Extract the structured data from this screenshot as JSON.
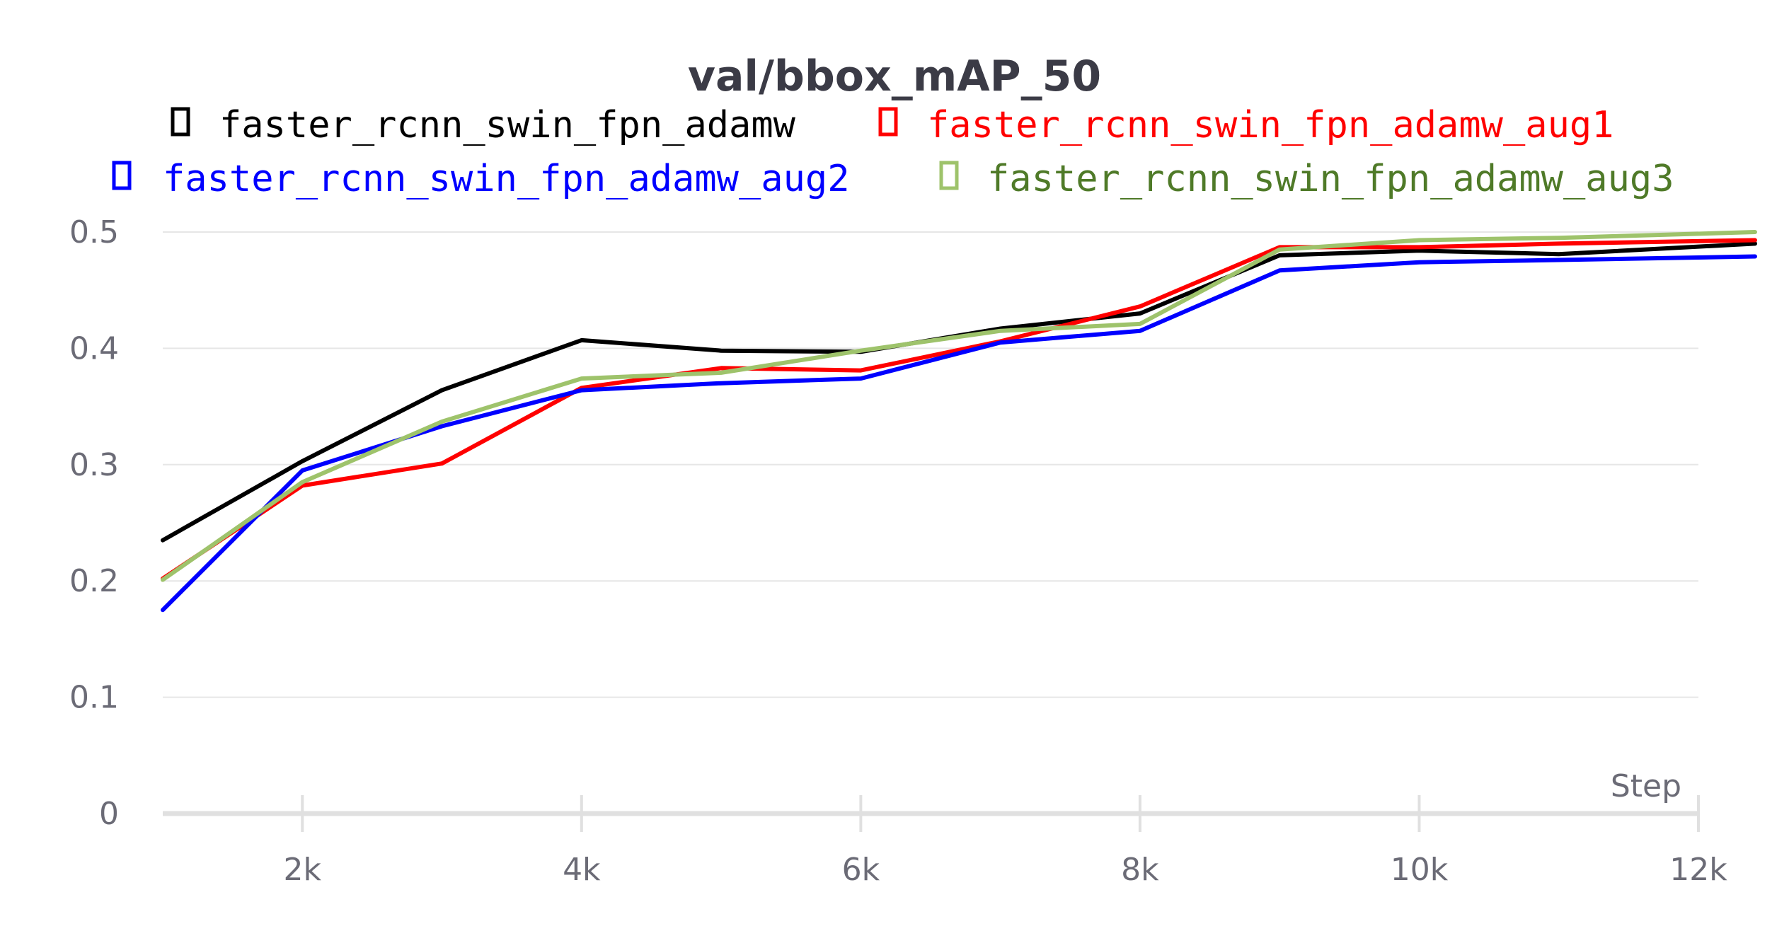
{
  "chart_data": {
    "type": "line",
    "title": "val/bbox_mAP_50",
    "xlabel": "Step",
    "ylabel": "",
    "xlim": [
      1000,
      12000
    ],
    "ylim": [
      0,
      0.5
    ],
    "grid": true,
    "legend_position": "top",
    "x_ticks": [
      2000,
      4000,
      6000,
      8000,
      10000,
      12000
    ],
    "x_tick_labels": [
      "2k",
      "4k",
      "6k",
      "8k",
      "10k",
      "12k"
    ],
    "y_ticks": [
      0,
      0.1,
      0.2,
      0.3,
      0.4,
      0.5
    ],
    "y_tick_labels": [
      "0",
      "0.1",
      "0.2",
      "0.3",
      "0.4",
      "0.5"
    ],
    "x": [
      1000,
      2000,
      3000,
      4000,
      5000,
      6000,
      7000,
      8000,
      9000,
      10000,
      11000,
      12000
    ],
    "series": [
      {
        "name": "faster_rcnn_swin_fpn_adamw",
        "color": "#000000",
        "text_color": "#000000",
        "values": [
          0.235,
          0.303,
          0.364,
          0.407,
          0.398,
          0.397,
          0.417,
          0.43,
          0.48,
          0.484,
          0.481,
          0.49
        ]
      },
      {
        "name": "faster_rcnn_swin_fpn_adamw_aug1",
        "color": "#ff0000",
        "text_color": "#ff0000",
        "values": [
          0.202,
          0.282,
          0.301,
          0.366,
          0.383,
          0.381,
          0.406,
          0.436,
          0.487,
          0.487,
          0.49,
          0.493
        ]
      },
      {
        "name": "faster_rcnn_swin_fpn_adamw_aug2",
        "color": "#0000ff",
        "text_color": "#0000ff",
        "values": [
          0.175,
          0.295,
          0.333,
          0.364,
          0.37,
          0.374,
          0.405,
          0.415,
          0.467,
          0.474,
          0.476,
          0.479
        ]
      },
      {
        "name": "faster_rcnn_swin_fpn_adamw_aug3",
        "color": "#9ec36b",
        "text_color": "#4f7a28",
        "values": [
          0.201,
          0.285,
          0.337,
          0.374,
          0.379,
          0.398,
          0.415,
          0.421,
          0.485,
          0.493,
          0.495,
          0.5
        ]
      }
    ]
  }
}
